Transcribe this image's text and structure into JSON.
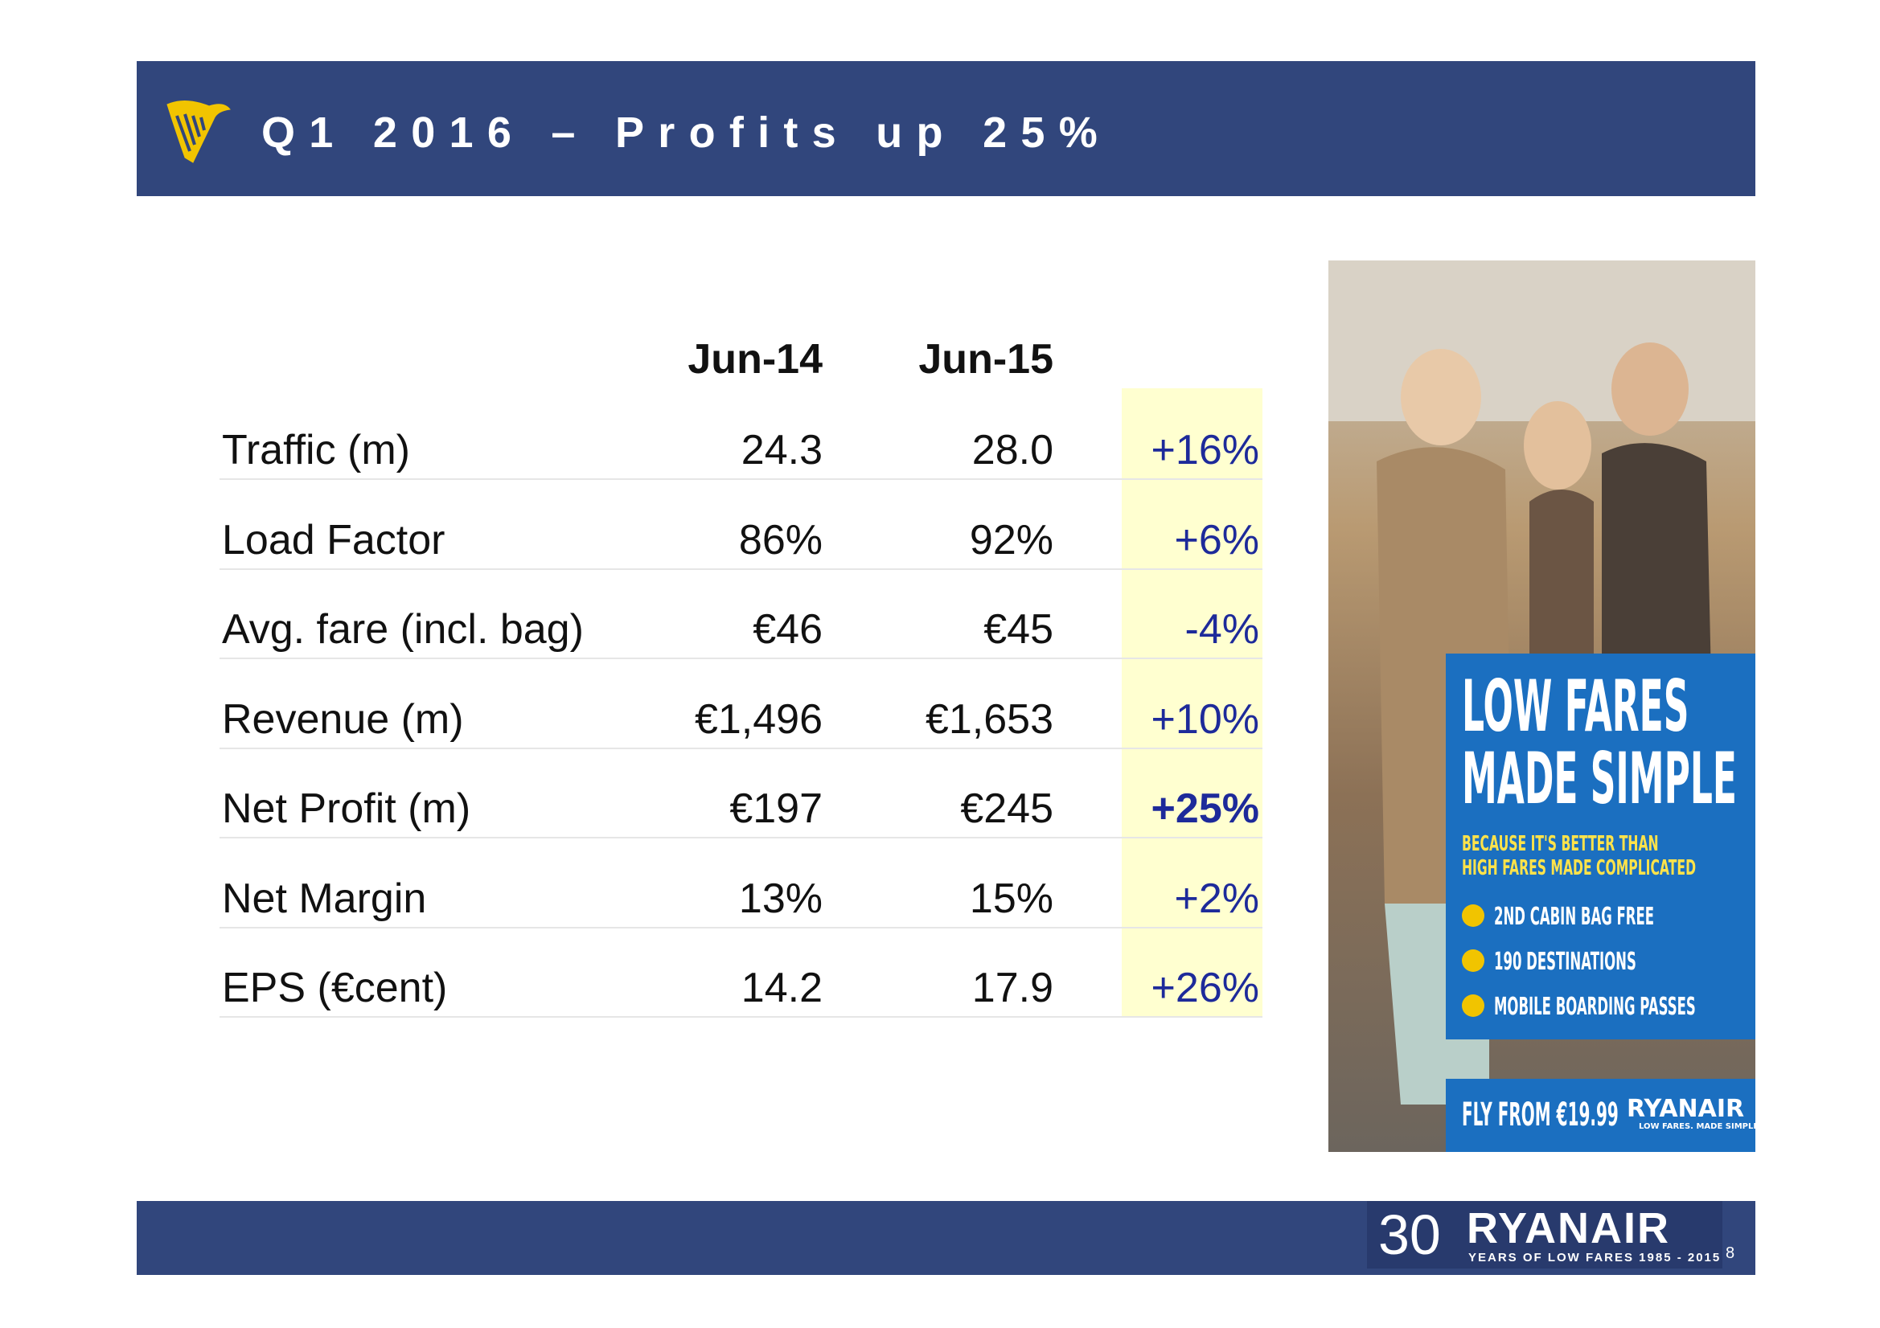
{
  "header": {
    "title": "Q1 2016 – Profits up 25%"
  },
  "table": {
    "columns": [
      "Jun-14",
      "Jun-15"
    ],
    "rows": [
      [
        "Traffic (m)",
        "24.3",
        "28.0",
        "+16%"
      ],
      [
        "Load Factor",
        "86%",
        "92%",
        "+6%"
      ],
      [
        "Avg. fare (incl. bag)",
        "€46",
        "€45",
        "-4%"
      ],
      [
        "Revenue (m)",
        "€1,496",
        "€1,653",
        "+10%"
      ],
      [
        "Net Profit (m)",
        "€197",
        "€245",
        "+25%"
      ],
      [
        "Net Margin",
        "13%",
        "15%",
        "+2%"
      ],
      [
        "EPS (€cent)",
        "14.2",
        "17.9",
        "+26%"
      ]
    ]
  },
  "ad": {
    "headline": [
      "LOW FARES",
      "MADE SIMPLE"
    ],
    "subline": [
      "BECAUSE IT'S BETTER THAN",
      "HIGH FARES MADE COMPLICATED"
    ],
    "features": [
      "2ND CABIN BAG FREE",
      "190 DESTINATIONS",
      "MOBILE BOARDING PASSES"
    ],
    "offer": "FLY FROM €19.99",
    "brand": "RYANAIR",
    "tagline": "LOW FARES. MADE SIMPLE."
  },
  "footer": {
    "years": "30",
    "brand": "RYANAIR",
    "tagline": "YEARS OF LOW FARES 1985 - 2015",
    "page": "8"
  }
}
